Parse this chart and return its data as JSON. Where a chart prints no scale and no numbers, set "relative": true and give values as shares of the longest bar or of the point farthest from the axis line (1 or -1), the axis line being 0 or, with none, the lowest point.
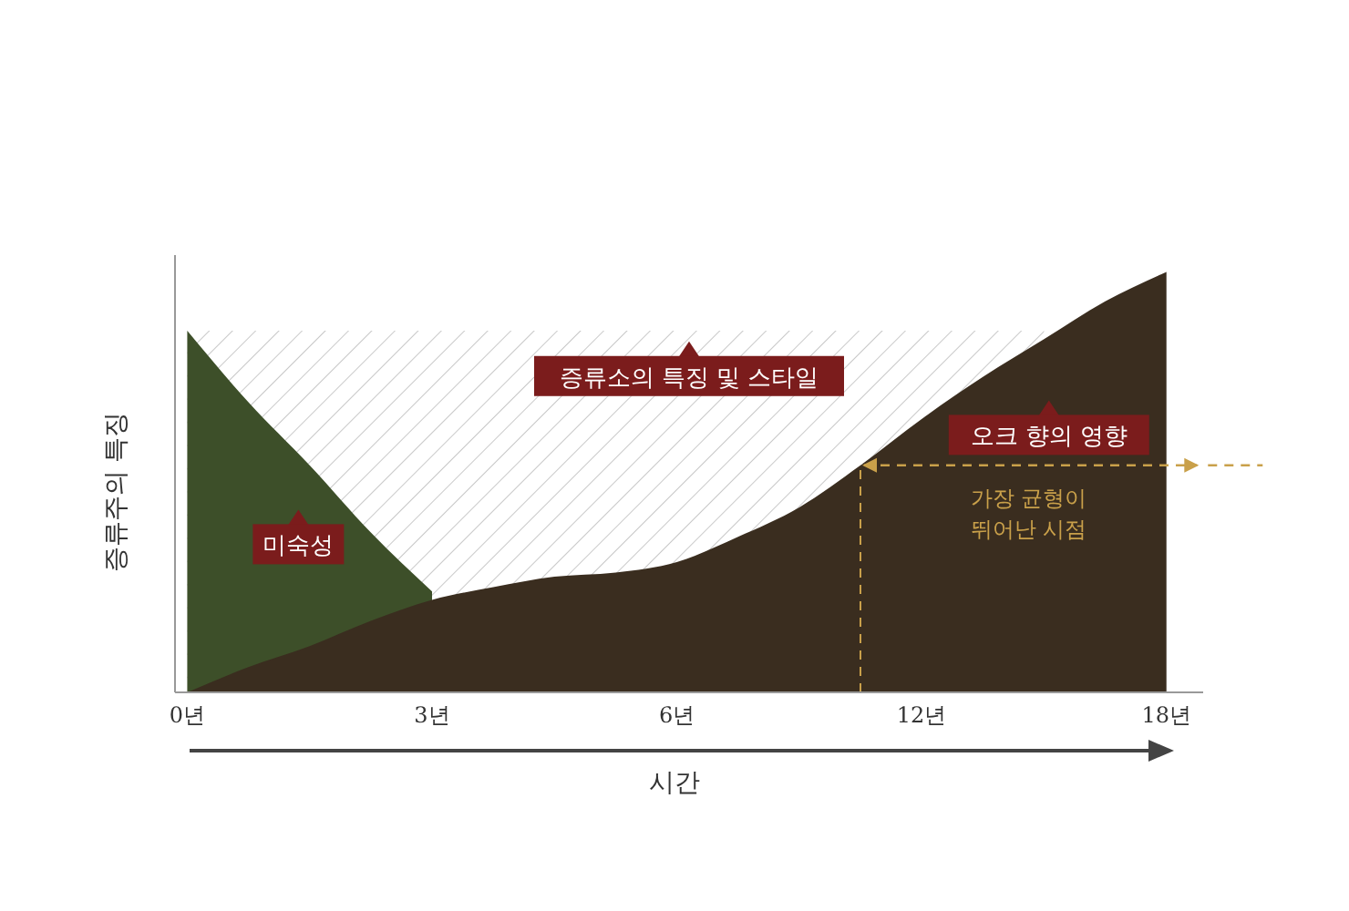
{
  "chart_data": {
    "type": "area",
    "relative": true,
    "xlabel": "시간",
    "ylabel": "증류주의 특징",
    "categories": [
      "0년",
      null,
      null,
      null,
      "3년",
      null,
      null,
      null,
      "6년",
      null,
      null,
      null,
      "12년",
      null,
      null,
      null,
      "18년"
    ],
    "series": [
      {
        "name": "증류소의 특징 및 스타일",
        "color": "#c8c8c8",
        "values": [
          0.86,
          0.86,
          0.86,
          0.86,
          0.86,
          0.86,
          0.86,
          0.86,
          0.86,
          0.86,
          0.86,
          0.86,
          0.86,
          0.86,
          0.86,
          null,
          null
        ]
      },
      {
        "name": "미숙성",
        "color": "#3d4f29",
        "values": [
          0.86,
          0.69,
          0.54,
          0.38,
          0.24,
          null,
          null,
          null,
          null,
          null,
          null,
          null,
          null,
          null,
          null,
          null,
          null
        ]
      },
      {
        "name": "오크 향의 영향",
        "color": "#3a2d1f",
        "values": [
          0,
          0.06,
          0.11,
          0.17,
          0.22,
          0.25,
          0.275,
          0.285,
          0.31,
          0.37,
          0.44,
          0.54,
          0.65,
          0.75,
          0.84,
          0.93,
          1.0
        ]
      }
    ],
    "ref_lines": [
      {
        "axis": "y",
        "value": 0.54,
        "label": "가장 균형이 뛰어난 시점",
        "color": "#c9a04a",
        "line_style": "dashed"
      }
    ],
    "legend": false,
    "grid": false
  }
}
